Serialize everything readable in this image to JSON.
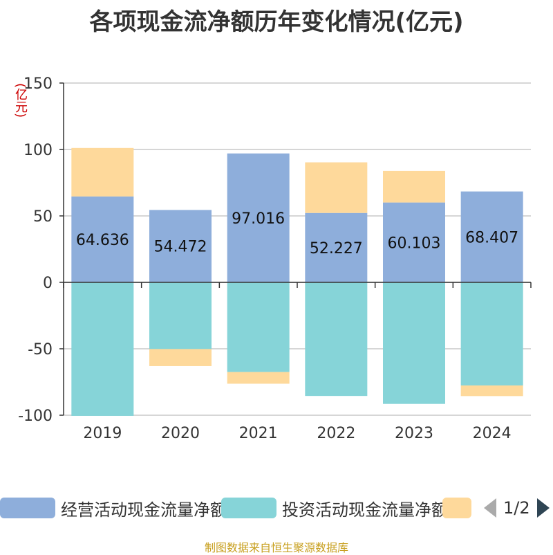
{
  "title": "各项现金流净额历年变化情况(亿元)",
  "unit_label": "(亿元)",
  "source": "制图数据来自恒生聚源数据库",
  "legend": {
    "items": [
      {
        "label": "经营活动现金流量净额",
        "color": "#8eaedb"
      },
      {
        "label": "投资活动现金流量净额",
        "color": "#86d4d8"
      },
      {
        "label": "",
        "color": "#fed99b"
      }
    ],
    "page": "1/2"
  },
  "chart_data": {
    "type": "bar",
    "stacked": true,
    "title": "各项现金流净额历年变化情况(亿元)",
    "ylabel": "(亿元)",
    "ylim": [
      -100,
      150
    ],
    "yticks": [
      150,
      100,
      50,
      0,
      -50,
      -100
    ],
    "categories": [
      "2019",
      "2020",
      "2021",
      "2022",
      "2023",
      "2024"
    ],
    "series": [
      {
        "name": "经营活动现金流量净额",
        "color": "#8eaedb",
        "values": [
          64.636,
          54.472,
          97.016,
          52.227,
          60.103,
          68.407
        ],
        "labels": [
          "64.636",
          "54.472",
          "97.016",
          "52.227",
          "60.103",
          "68.407"
        ]
      },
      {
        "name": "投资活动现金流量净额",
        "color": "#86d4d8",
        "values": [
          -100.5,
          -50.2,
          -67.5,
          -85.5,
          -91.5,
          -77.6
        ]
      },
      {
        "name": "",
        "color": "#fed99b",
        "values": [
          36.5,
          -12.8,
          -8.8,
          38.1,
          23.8,
          -8.0
        ]
      }
    ]
  }
}
